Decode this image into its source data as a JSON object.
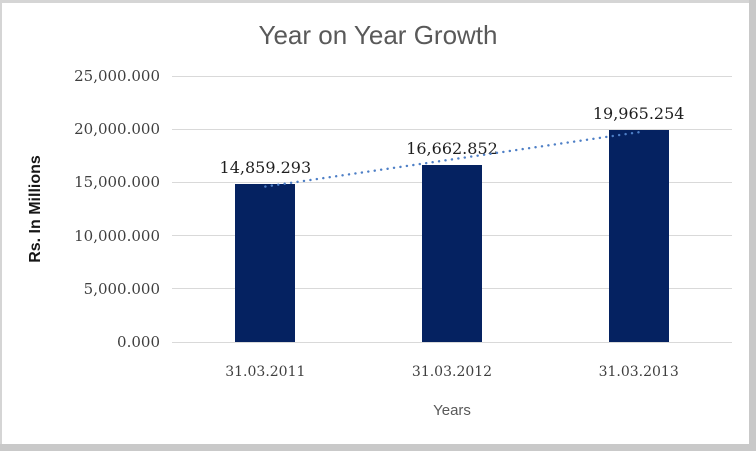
{
  "chart_data": {
    "type": "bar",
    "title": "Year on Year Growth",
    "xlabel": "Years",
    "ylabel": "Rs. In Millions",
    "categories": [
      "31.03.2011",
      "31.03.2012",
      "31.03.2013"
    ],
    "values": [
      14859.293,
      16662.852,
      19965.254
    ],
    "data_labels": [
      "14,859.293",
      "16,662.852",
      "19,965.254"
    ],
    "y_ticks": [
      {
        "label": "25,000.000",
        "value": 25000
      },
      {
        "label": "20,000.000",
        "value": 20000
      },
      {
        "label": "15,000.000",
        "value": 15000
      },
      {
        "label": "10,000.000",
        "value": 10000
      },
      {
        "label": "5,000.000",
        "value": 5000
      },
      {
        "label": "0.000",
        "value": 0
      }
    ],
    "ylim": [
      0,
      25000
    ],
    "grid": true,
    "legend": "none",
    "trendline": {
      "fit": "linear",
      "style": "dotted"
    },
    "colors": {
      "bar": "#052261",
      "trendline": "#4e7fc6",
      "gridline": "#d9d9d9",
      "title_text": "#595959",
      "axis_title_text": "#161616",
      "tick_text": "#3f3f3f",
      "data_label_text": "#1f1f1f",
      "frame": "#d5d5d5",
      "frame_shadow": "#c9c9c9"
    }
  }
}
